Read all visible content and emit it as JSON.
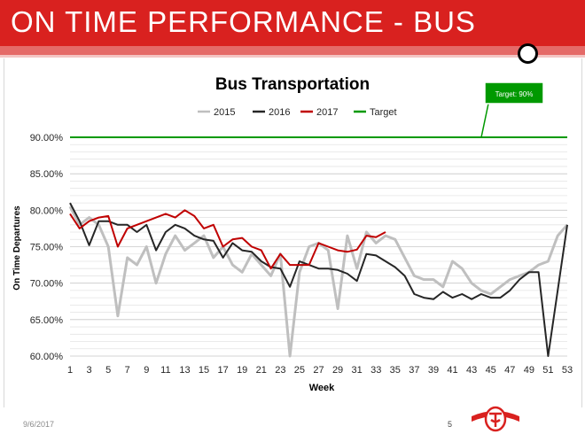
{
  "header": {
    "title": "ON TIME PERFORMANCE - BUS"
  },
  "footer": {
    "date": "9/6/2017",
    "page_number": "5"
  },
  "colors": {
    "banner": "#d9211f",
    "s2015": "#bfbfbf",
    "s2016": "#262626",
    "s2017": "#c00000",
    "target": "#009900"
  },
  "chart_data": {
    "type": "line",
    "title": "Bus Transportation",
    "xlabel": "Week",
    "ylabel": "On Time Departures",
    "ylim": [
      60,
      90
    ],
    "xlim": [
      1,
      53
    ],
    "x_ticks": [
      1,
      3,
      5,
      7,
      9,
      11,
      13,
      15,
      17,
      19,
      21,
      23,
      25,
      27,
      29,
      31,
      33,
      35,
      37,
      39,
      41,
      43,
      45,
      47,
      49,
      51,
      53
    ],
    "y_ticks": [
      60,
      65,
      70,
      75,
      80,
      85,
      90
    ],
    "y_tick_labels": [
      "60.00%",
      "65.00%",
      "70.00%",
      "75.00%",
      "80.00%",
      "85.00%",
      "90.00%"
    ],
    "grid": true,
    "legend_position": "top",
    "target_label": "Target: 90%",
    "series": [
      {
        "name": "2015",
        "x": [
          1,
          2,
          3,
          4,
          5,
          6,
          7,
          8,
          9,
          10,
          11,
          12,
          13,
          14,
          15,
          16,
          17,
          18,
          19,
          20,
          21,
          22,
          23,
          24,
          25,
          26,
          27,
          28,
          29,
          30,
          31,
          32,
          33,
          34,
          35,
          36,
          37,
          38,
          39,
          40,
          41,
          42,
          43,
          44,
          45,
          46,
          47,
          48,
          49,
          50,
          51,
          52,
          53
        ],
        "values": [
          80.5,
          78,
          79,
          78,
          75,
          65.5,
          73.5,
          72.5,
          75,
          70,
          74,
          76.5,
          74.5,
          75.5,
          76.5,
          73.5,
          75,
          72.5,
          71.5,
          74,
          72.5,
          71,
          74,
          60,
          71.5,
          75,
          75.5,
          74.5,
          66.5,
          76.5,
          72,
          77,
          75.5,
          76.5,
          76,
          73.5,
          71,
          70.5,
          70.5,
          69.5,
          73,
          72,
          70,
          69,
          68.5,
          69.5,
          70.5,
          71,
          71.5,
          72.5,
          73,
          76.5,
          78
        ]
      },
      {
        "name": "2016",
        "x": [
          1,
          2,
          3,
          4,
          5,
          6,
          7,
          8,
          9,
          10,
          11,
          12,
          13,
          14,
          15,
          16,
          17,
          18,
          19,
          20,
          21,
          22,
          23,
          24,
          25,
          26,
          27,
          28,
          29,
          30,
          31,
          32,
          33,
          34,
          35,
          36,
          37,
          38,
          39,
          40,
          41,
          42,
          43,
          44,
          45,
          46,
          47,
          48,
          49,
          50,
          51,
          52,
          53
        ],
        "values": [
          81,
          78.5,
          75.2,
          78.5,
          78.5,
          78,
          78,
          77,
          78,
          74.5,
          77,
          78,
          77.5,
          76.5,
          76,
          75.8,
          73.5,
          75.5,
          74.5,
          74.3,
          73,
          72.2,
          72,
          69.5,
          73,
          72.5,
          72,
          72,
          71.8,
          71.3,
          70.3,
          74,
          73.8,
          73,
          72.2,
          71,
          68.5,
          68,
          67.8,
          68.8,
          68,
          68.5,
          67.8,
          68.5,
          68,
          68,
          69,
          70.5,
          71.5,
          71.5,
          60,
          69,
          78
        ]
      },
      {
        "name": "2017",
        "x": [
          1,
          2,
          3,
          4,
          5,
          6,
          7,
          8,
          9,
          10,
          11,
          12,
          13,
          14,
          15,
          16,
          17,
          18,
          19,
          20,
          21,
          22,
          23,
          24,
          25,
          26,
          27,
          28,
          29,
          30,
          31,
          32,
          33,
          34
        ],
        "values": [
          79.5,
          77.5,
          78.5,
          79,
          79.2,
          75,
          77.5,
          78,
          78.5,
          79,
          79.5,
          79,
          80,
          79.2,
          77.5,
          78,
          75,
          76,
          76.2,
          75,
          74.5,
          72,
          74,
          72.5,
          72.5,
          72.5,
          75.5,
          75,
          74.5,
          74.3,
          74.6,
          76.5,
          76.3,
          77
        ]
      },
      {
        "name": "Target",
        "x": [
          1,
          53
        ],
        "values": [
          90,
          90
        ]
      }
    ]
  }
}
